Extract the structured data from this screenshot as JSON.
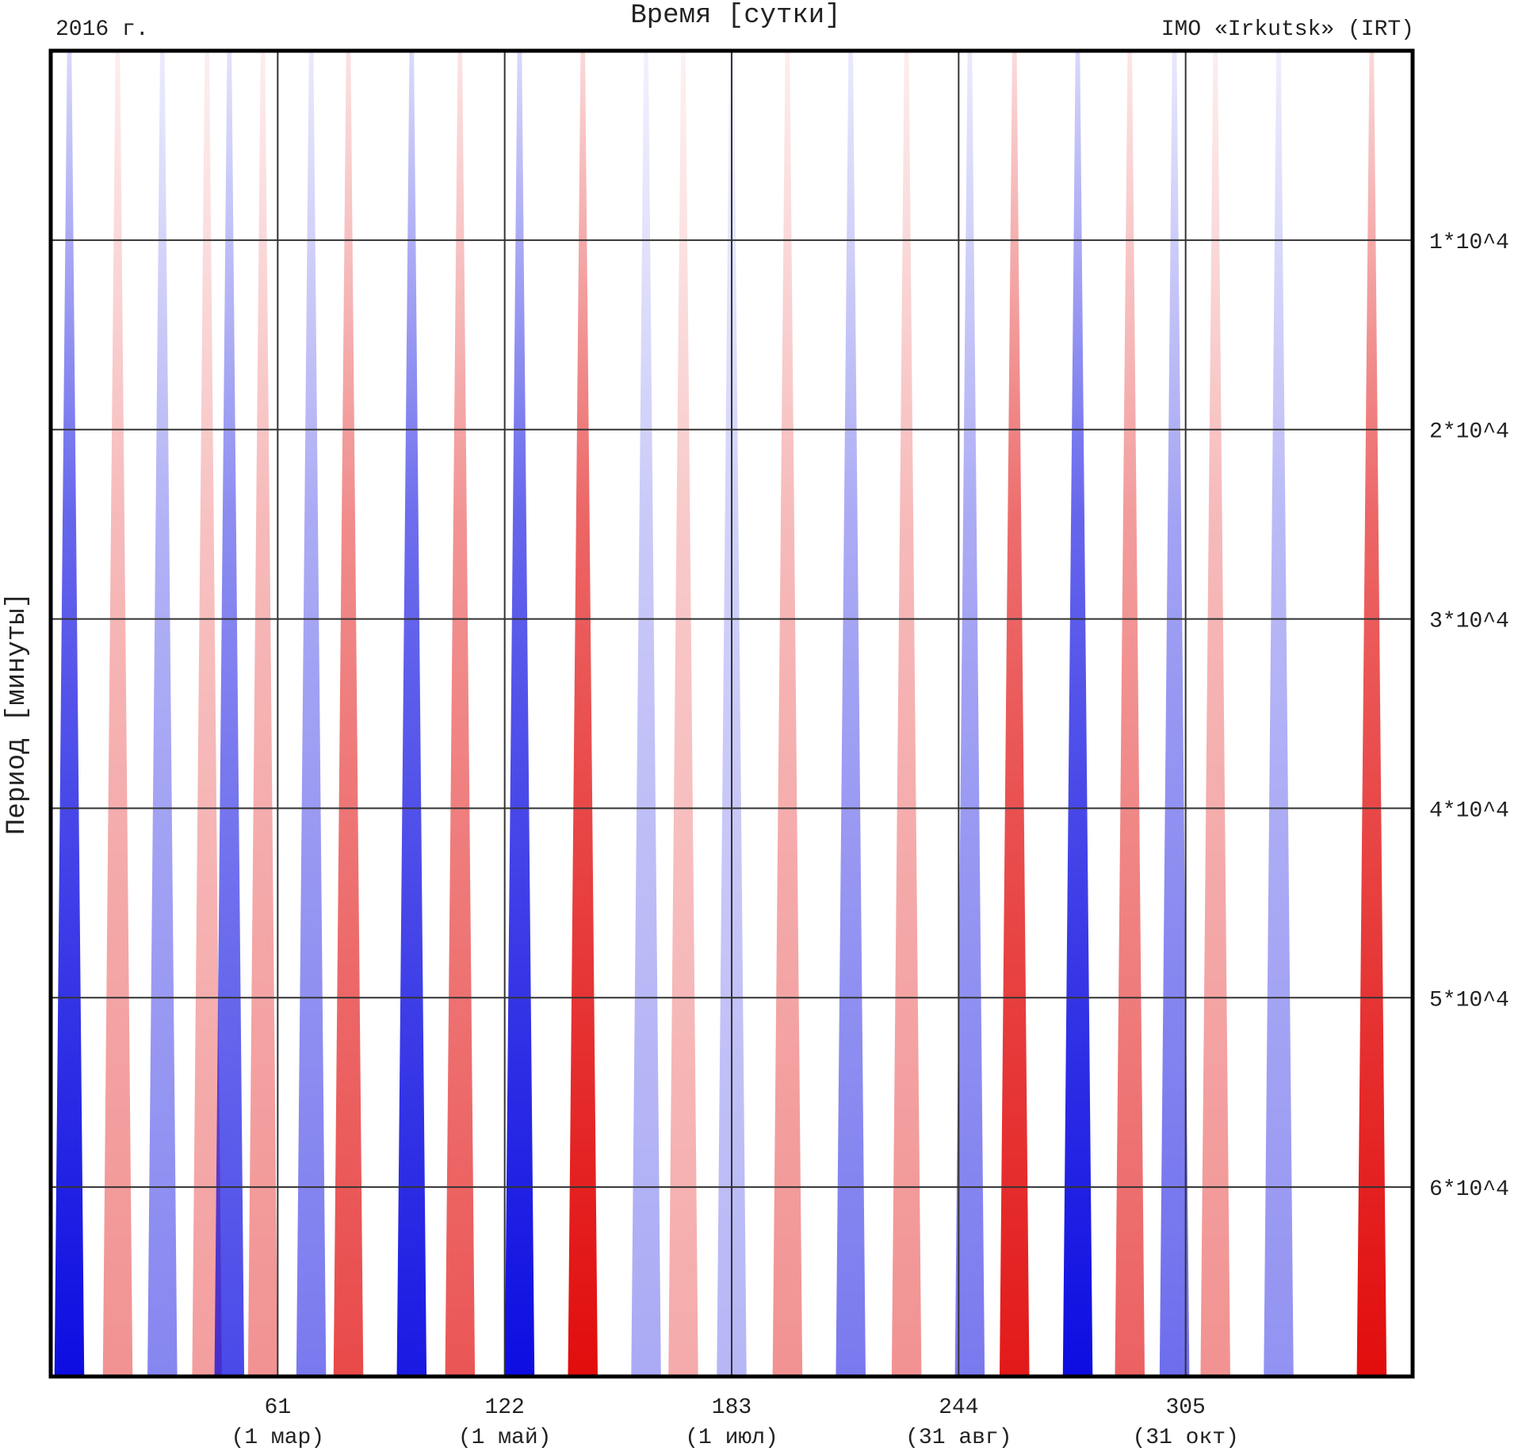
{
  "header": {
    "year": "2016 г.",
    "title": "Время [сутки]",
    "station": "IMO «Irkutsk» (IRT)"
  },
  "chart_data": {
    "type": "heatmap",
    "title": "Время [сутки]",
    "xlabel": "Время [сутки]",
    "ylabel": "Период [минуты]",
    "xlim": [
      0,
      366
    ],
    "ylim": [
      0,
      70000
    ],
    "grid": true,
    "x_ticks": [
      {
        "value": 61,
        "label": "61",
        "date": "(1 мар)"
      },
      {
        "value": 122,
        "label": "122",
        "date": "(1 май)"
      },
      {
        "value": 183,
        "label": "183",
        "date": "(1 июл)"
      },
      {
        "value": 244,
        "label": "244",
        "date": "(31 авг)"
      },
      {
        "value": 305,
        "label": "305",
        "date": "(31 окт)"
      }
    ],
    "y_ticks": [
      {
        "value": 10000,
        "label": "1*10^4"
      },
      {
        "value": 20000,
        "label": "2*10^4"
      },
      {
        "value": 30000,
        "label": "3*10^4"
      },
      {
        "value": 40000,
        "label": "4*10^4"
      },
      {
        "value": 50000,
        "label": "5*10^4"
      },
      {
        "value": 60000,
        "label": "6*10^4"
      }
    ],
    "colors": {
      "positive": "#e00000",
      "negative": "#0000e0",
      "zero": "#ffffff",
      "grid": "#333333",
      "frame": "#000000"
    },
    "bands": [
      {
        "day": 5,
        "sign": -1,
        "strength": 1.0
      },
      {
        "day": 18,
        "sign": 1,
        "strength": 0.45
      },
      {
        "day": 30,
        "sign": -1,
        "strength": 0.5
      },
      {
        "day": 42,
        "sign": 1,
        "strength": 0.4
      },
      {
        "day": 48,
        "sign": -1,
        "strength": 0.75
      },
      {
        "day": 57,
        "sign": 1,
        "strength": 0.45
      },
      {
        "day": 70,
        "sign": -1,
        "strength": 0.55
      },
      {
        "day": 80,
        "sign": 1,
        "strength": 0.75
      },
      {
        "day": 97,
        "sign": -1,
        "strength": 0.95
      },
      {
        "day": 110,
        "sign": 1,
        "strength": 0.7
      },
      {
        "day": 126,
        "sign": -1,
        "strength": 1.0
      },
      {
        "day": 143,
        "sign": 1,
        "strength": 1.0
      },
      {
        "day": 160,
        "sign": -1,
        "strength": 0.35
      },
      {
        "day": 170,
        "sign": 1,
        "strength": 0.35
      },
      {
        "day": 183,
        "sign": -1,
        "strength": 0.3
      },
      {
        "day": 198,
        "sign": 1,
        "strength": 0.45
      },
      {
        "day": 215,
        "sign": -1,
        "strength": 0.55
      },
      {
        "day": 230,
        "sign": 1,
        "strength": 0.45
      },
      {
        "day": 247,
        "sign": -1,
        "strength": 0.55
      },
      {
        "day": 259,
        "sign": 1,
        "strength": 0.95
      },
      {
        "day": 276,
        "sign": -1,
        "strength": 1.0
      },
      {
        "day": 290,
        "sign": 1,
        "strength": 0.65
      },
      {
        "day": 302,
        "sign": -1,
        "strength": 0.6
      },
      {
        "day": 313,
        "sign": 1,
        "strength": 0.45
      },
      {
        "day": 330,
        "sign": -1,
        "strength": 0.45
      },
      {
        "day": 355,
        "sign": 1,
        "strength": 1.0
      }
    ]
  }
}
